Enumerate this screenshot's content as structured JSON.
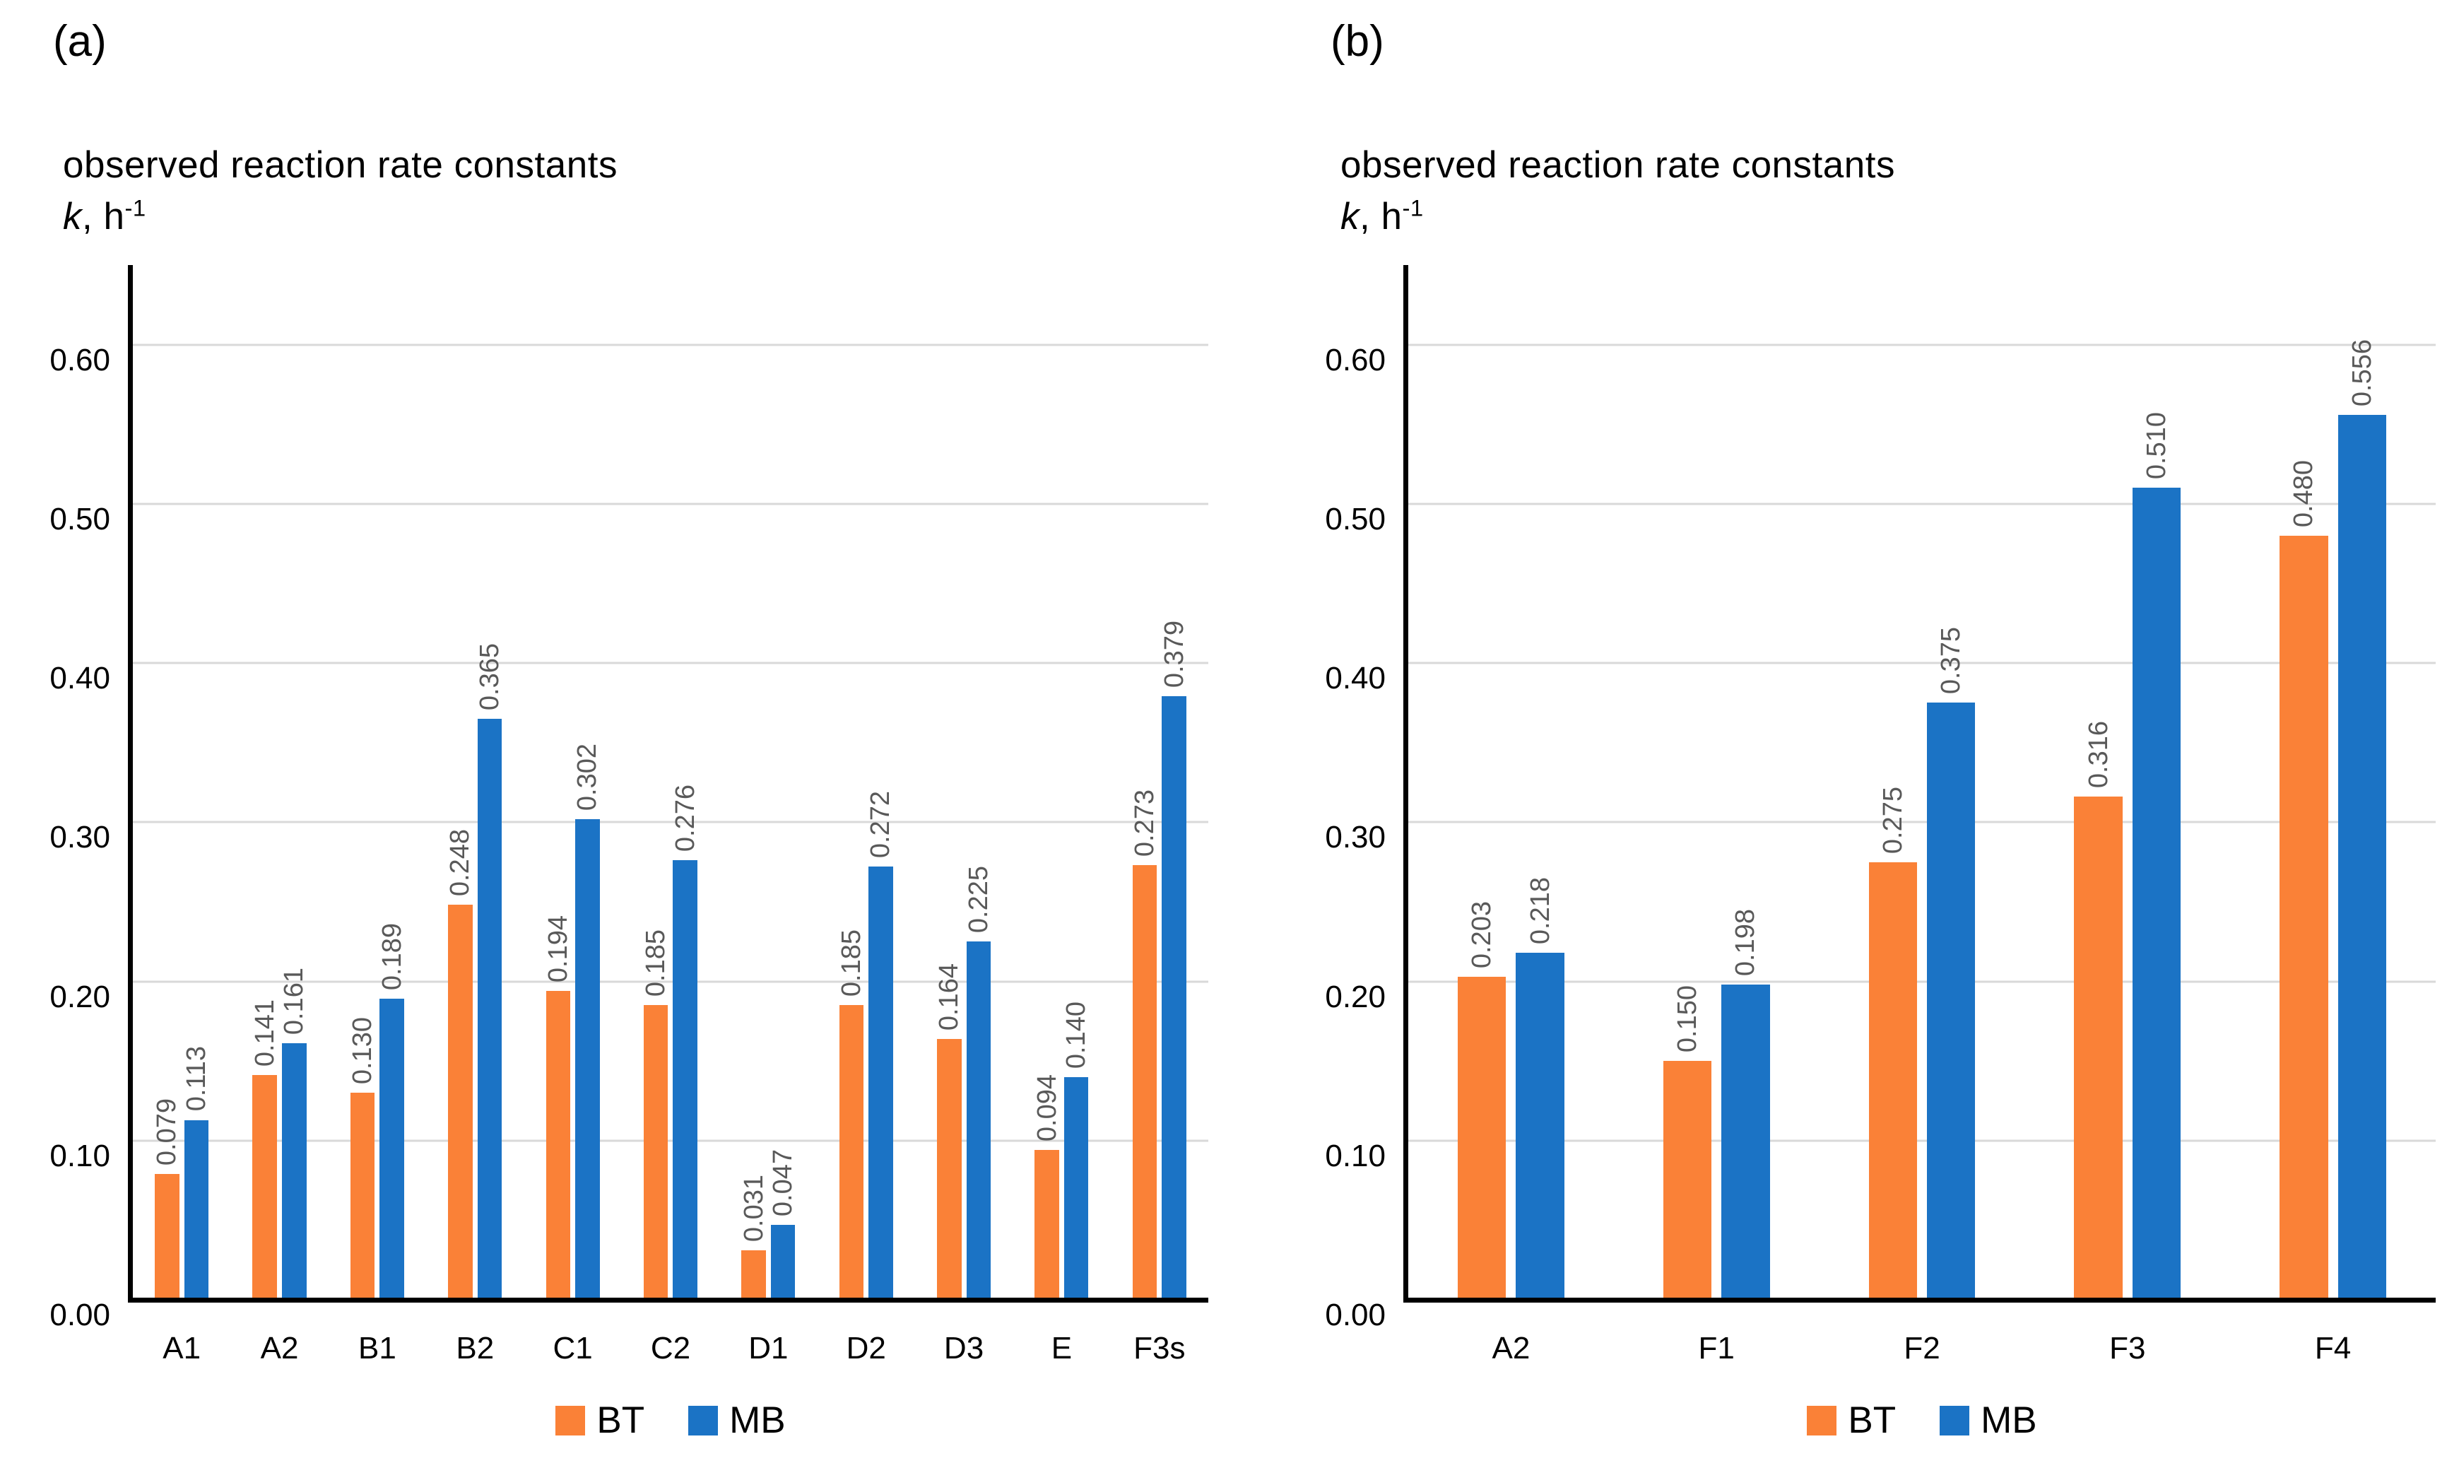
{
  "figure": {
    "background": "#FFFFFF"
  },
  "colors": {
    "gridline": "#D9D9D9",
    "axis": "#000000",
    "value_label": "#595959",
    "tick_label": "#000000",
    "bt_orange": "#FA8137",
    "mb_blue": "#1B73C5"
  },
  "legend": {
    "bt_label": "BT",
    "mb_label": "MB"
  },
  "chart_data": [
    {
      "type": "bar",
      "panel_label": "(a)",
      "title": "observed reaction rate constants",
      "ylabel_symbol": "k",
      "ylabel_rest": ", h",
      "ylabel_sup": "-1",
      "categories": [
        "A1",
        "A2",
        "B1",
        "B2",
        "C1",
        "C2",
        "D1",
        "D2",
        "D3",
        "E",
        "F3s"
      ],
      "series": [
        {
          "name": "BT",
          "color": "#FA8137",
          "values": [
            0.079,
            0.141,
            0.13,
            0.248,
            0.194,
            0.185,
            0.031,
            0.185,
            0.164,
            0.094,
            0.273
          ]
        },
        {
          "name": "MB",
          "color": "#1B73C5",
          "values": [
            0.113,
            0.161,
            0.189,
            0.365,
            0.302,
            0.276,
            0.047,
            0.272,
            0.225,
            0.14,
            0.379
          ]
        }
      ],
      "ylim": [
        0,
        0.65
      ],
      "yticks": [
        "0.00",
        "0.10",
        "0.20",
        "0.30",
        "0.40",
        "0.50",
        "0.60"
      ],
      "grid": true,
      "legend_position": "bottom",
      "value_label_decimals": 3
    },
    {
      "type": "bar",
      "panel_label": "(b)",
      "title": "observed reaction rate constants",
      "ylabel_symbol": "k",
      "ylabel_rest": ", h",
      "ylabel_sup": "-1",
      "categories": [
        "A2",
        "F1",
        "F2",
        "F3",
        "F4"
      ],
      "series": [
        {
          "name": "BT",
          "color": "#FA8137",
          "values": [
            0.203,
            0.15,
            0.275,
            0.316,
            0.48
          ]
        },
        {
          "name": "MB",
          "color": "#1B73C5",
          "values": [
            0.218,
            0.198,
            0.375,
            0.51,
            0.556
          ]
        }
      ],
      "ylim": [
        0,
        0.65
      ],
      "yticks": [
        "0.00",
        "0.10",
        "0.20",
        "0.30",
        "0.40",
        "0.50",
        "0.60"
      ],
      "grid": true,
      "legend_position": "bottom",
      "value_label_decimals": 3
    }
  ]
}
